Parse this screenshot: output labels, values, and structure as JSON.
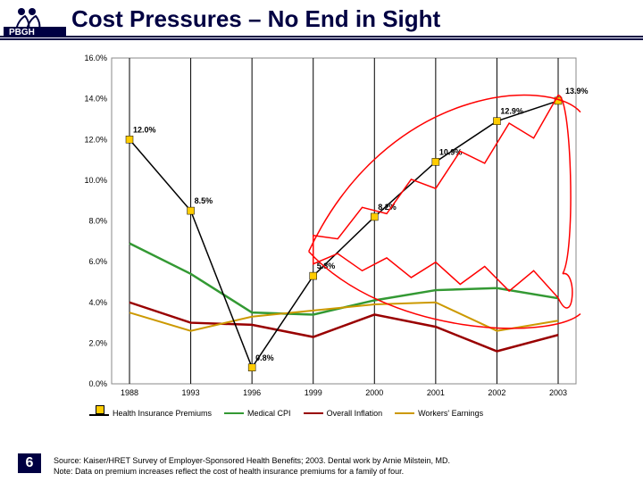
{
  "title": "Cost Pressures – No End in Sight",
  "slide_number": "6",
  "source_line1": "Source: Kaiser/HRET Survey of Employer-Sponsored Health Benefits; 2003. Dental work by Arnie Milstein, MD.",
  "source_line2": "Note: Data on premium increases reflect the cost of health insurance premiums for a family of four.",
  "logo_text": "PBGH",
  "chart": {
    "type": "line",
    "background_color": "#ffffff",
    "plot_background_color": "#ffffff",
    "gridline_color": "#000000",
    "axis_font_size": 9,
    "x_categories": [
      "1988",
      "1993",
      "1996",
      "1999",
      "2000",
      "2001",
      "2002",
      "2003"
    ],
    "ylim": [
      0,
      16
    ],
    "ytick_step": 2,
    "ytick_format_suffix": ".0%",
    "series": {
      "premiums": {
        "label": "Health Insurance Premiums",
        "color": "#ffcc00",
        "line_width": 2.5,
        "marker": "square",
        "marker_size": 8,
        "marker_color": "#ffcc00",
        "connect_color": "#000000",
        "connect_width": 1.5,
        "values": [
          12.0,
          8.5,
          0.8,
          5.3,
          8.2,
          10.9,
          12.9,
          13.9
        ],
        "data_labels": [
          "12.0%",
          "8.5%",
          "0.8%",
          "5.3%",
          "8.2%",
          "10.9%",
          "12.9%",
          "13.9%"
        ],
        "label_font_size": 9
      },
      "medical_cpi": {
        "label": "Medical CPI",
        "color": "#339933",
        "line_width": 2.5,
        "values": [
          6.9,
          5.4,
          3.5,
          3.4,
          4.1,
          4.6,
          4.7,
          4.2
        ]
      },
      "inflation": {
        "label": "Overall Inflation",
        "color": "#990000",
        "line_width": 2.5,
        "values": [
          4.0,
          3.0,
          2.9,
          2.3,
          3.4,
          2.8,
          1.6,
          2.4
        ]
      },
      "earnings": {
        "label": "Workers' Earnings",
        "color": "#cc9900",
        "line_width": 2,
        "values": [
          3.5,
          2.6,
          3.3,
          3.6,
          3.9,
          4.0,
          2.6,
          3.1
        ]
      }
    },
    "jaws": {
      "stroke": "#ff0000",
      "stroke_width": 1.5,
      "fill": "none"
    }
  },
  "legend_order": [
    "premiums",
    "medical_cpi",
    "inflation",
    "earnings"
  ]
}
